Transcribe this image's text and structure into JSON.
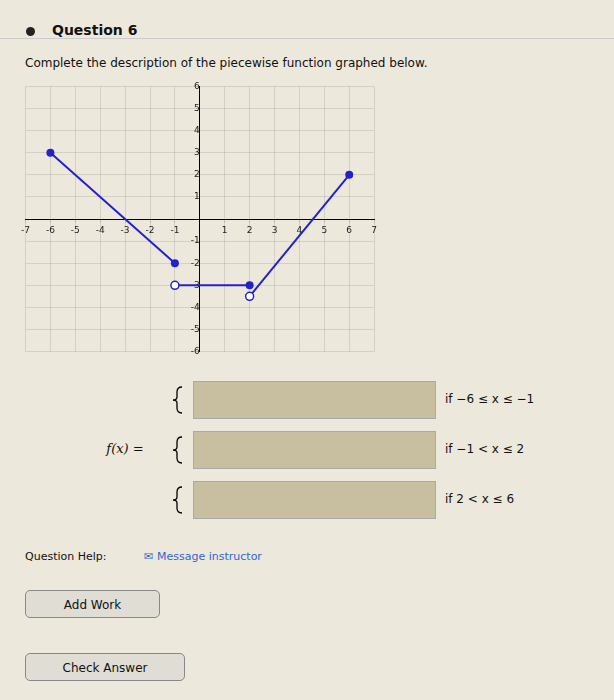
{
  "chart_data": {
    "type": "line",
    "title": "Question 6",
    "subtitle": "Complete the description of the piecewise function graphed below.",
    "series": [
      {
        "type": "line",
        "x": [
          -6,
          -1
        ],
        "values": [
          3,
          -2
        ],
        "color": "#2222cc"
      },
      {
        "type": "line",
        "x": [
          -1,
          2
        ],
        "values": [
          -3,
          -3
        ],
        "color": "#2222cc"
      },
      {
        "type": "line",
        "x": [
          2,
          6
        ],
        "values": [
          -3.5,
          2
        ],
        "color": "#2222cc"
      },
      {
        "type": "scatter",
        "marker": "circle",
        "x": [
          -6,
          -1,
          2,
          6
        ],
        "values": [
          3,
          -2,
          -3,
          2
        ],
        "color": "#2222cc"
      },
      {
        "type": "scatter",
        "marker": "open_circle",
        "x": [
          -1,
          2
        ],
        "values": [
          -3,
          -3.5
        ],
        "color": "#2222cc"
      }
    ],
    "xlim": [
      -7,
      7
    ],
    "ylim": [
      -6,
      6
    ],
    "xticks": [
      -7,
      -6,
      -5,
      -4,
      -3,
      -2,
      -1,
      1,
      2,
      3,
      4,
      5,
      6,
      7
    ],
    "yticks": [
      -6,
      -5,
      -4,
      -3,
      -2,
      -1,
      1,
      2,
      3,
      4,
      5,
      6
    ],
    "grid": true,
    "annotations": [
      "f(x) =",
      "if −6 ≤ x ≤ −1",
      "if −1 < x ≤ 2",
      "if 2 < x ≤ 6",
      "Question Help:",
      "✉",
      "Message instructor",
      "Add Work",
      "Check Answer"
    ]
  }
}
